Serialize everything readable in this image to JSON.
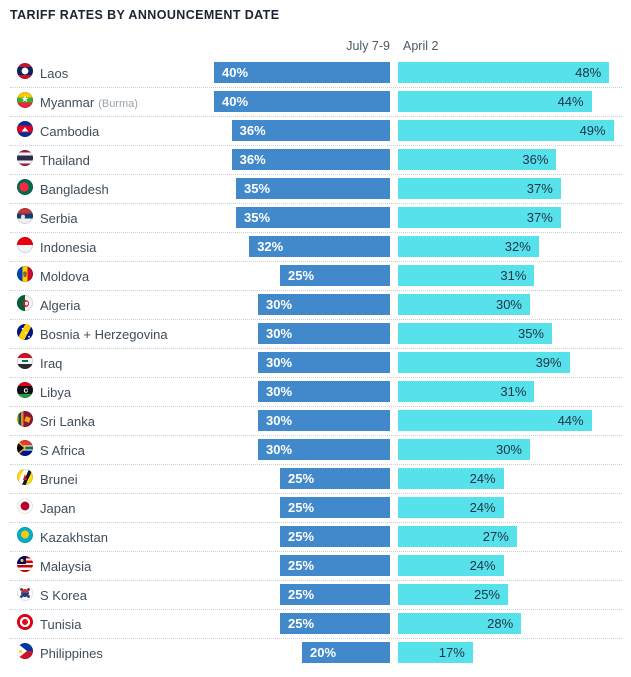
{
  "title": "TARIFF RATES BY ANNOUNCEMENT DATE",
  "columns": {
    "left": "July 7-9",
    "right": "April 2"
  },
  "colors": {
    "july_bar": "#4189cb",
    "april_bar": "#57e1ea",
    "july_value_text": "#ffffff",
    "april_value_text": "#1e3348",
    "title_text": "#1b2430",
    "country_text": "#3e4d5c",
    "header_text": "#4b5866",
    "separator": "#c9ced3"
  },
  "chart_data": {
    "type": "bar",
    "orientation": "horizontal",
    "title": "TARIFF RATES BY ANNOUNCEMENT DATE",
    "unit": "%",
    "xlim": [
      0,
      50
    ],
    "grid": false,
    "legend_position": "top",
    "series_names": [
      "July 7-9",
      "April 2"
    ],
    "rows": [
      {
        "country": "Laos",
        "note": "",
        "flag": "laos",
        "july": 40,
        "april": 48,
        "july_label": "40%",
        "april_label": "48%"
      },
      {
        "country": "Myanmar",
        "note": "(Burma)",
        "flag": "myanmar",
        "july": 40,
        "april": 44,
        "july_label": "40%",
        "april_label": "44%"
      },
      {
        "country": "Cambodia",
        "note": "",
        "flag": "cambodia",
        "july": 36,
        "april": 49,
        "july_label": "36%",
        "april_label": "49%"
      },
      {
        "country": "Thailand",
        "note": "",
        "flag": "thailand",
        "july": 36,
        "april": 36,
        "july_label": "36%",
        "april_label": "36%"
      },
      {
        "country": "Bangladesh",
        "note": "",
        "flag": "bangladesh",
        "july": 35,
        "april": 37,
        "july_label": "35%",
        "april_label": "37%"
      },
      {
        "country": "Serbia",
        "note": "",
        "flag": "serbia",
        "july": 35,
        "april": 37,
        "july_label": "35%",
        "april_label": "37%"
      },
      {
        "country": "Indonesia",
        "note": "",
        "flag": "indonesia",
        "july": 32,
        "april": 32,
        "july_label": "32%",
        "april_label": "32%"
      },
      {
        "country": "Moldova",
        "note": "",
        "flag": "moldova",
        "july": 25,
        "april": 31,
        "july_label": "25%",
        "april_label": "31%"
      },
      {
        "country": "Algeria",
        "note": "",
        "flag": "algeria",
        "july": 30,
        "april": 30,
        "july_label": "30%",
        "april_label": "30%"
      },
      {
        "country": "Bosnia + Herzegovina",
        "note": "",
        "flag": "bosnia",
        "july": 30,
        "april": 35,
        "july_label": "30%",
        "april_label": "35%"
      },
      {
        "country": "Iraq",
        "note": "",
        "flag": "iraq",
        "july": 30,
        "april": 39,
        "july_label": "30%",
        "april_label": "39%"
      },
      {
        "country": "Libya",
        "note": "",
        "flag": "libya",
        "july": 30,
        "april": 31,
        "july_label": "30%",
        "april_label": "31%"
      },
      {
        "country": "Sri Lanka",
        "note": "",
        "flag": "sri-lanka",
        "july": 30,
        "april": 44,
        "july_label": "30%",
        "april_label": "44%"
      },
      {
        "country": "S Africa",
        "note": "",
        "flag": "s-africa",
        "july": 30,
        "april": 30,
        "july_label": "30%",
        "april_label": "30%"
      },
      {
        "country": "Brunei",
        "note": "",
        "flag": "brunei",
        "july": 25,
        "april": 24,
        "july_label": "25%",
        "april_label": "24%"
      },
      {
        "country": "Japan",
        "note": "",
        "flag": "japan",
        "july": 25,
        "april": 24,
        "july_label": "25%",
        "april_label": "24%"
      },
      {
        "country": "Kazakhstan",
        "note": "",
        "flag": "kazakhstan",
        "july": 25,
        "april": 27,
        "july_label": "25%",
        "april_label": "27%"
      },
      {
        "country": "Malaysia",
        "note": "",
        "flag": "malaysia",
        "july": 25,
        "april": 24,
        "july_label": "25%",
        "april_label": "24%"
      },
      {
        "country": "S Korea",
        "note": "",
        "flag": "s-korea",
        "july": 25,
        "april": 25,
        "july_label": "25%",
        "april_label": "25%"
      },
      {
        "country": "Tunisia",
        "note": "",
        "flag": "tunisia",
        "july": 25,
        "april": 28,
        "july_label": "25%",
        "april_label": "28%"
      },
      {
        "country": "Philippines",
        "note": "",
        "flag": "philippines",
        "july": 20,
        "april": 17,
        "july_label": "20%",
        "april_label": "17%"
      }
    ]
  }
}
